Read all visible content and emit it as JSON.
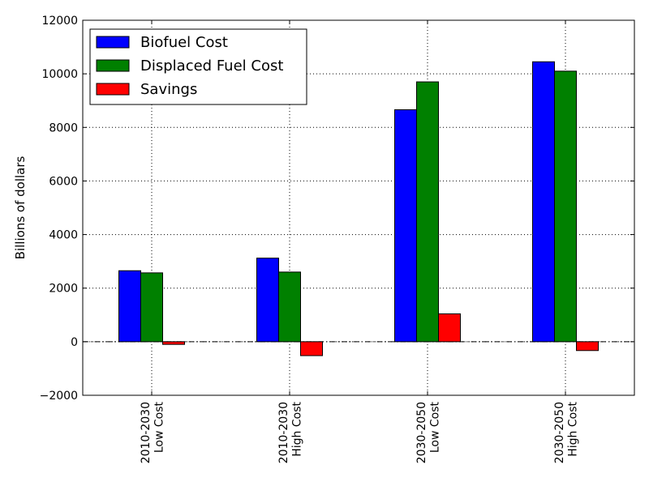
{
  "chart_data": {
    "type": "bar",
    "title": "",
    "xlabel": "",
    "ylabel": "Billions of dollars",
    "categories": [
      [
        "2010-2030",
        "Low Cost"
      ],
      [
        "2010-2030",
        "High Cost"
      ],
      [
        "2030-2050",
        "Low Cost"
      ],
      [
        "2030-2050",
        "High Cost"
      ]
    ],
    "series": [
      {
        "name": "Biofuel Cost",
        "color": "#0000ff",
        "values": [
          2650,
          3120,
          8660,
          10450
        ]
      },
      {
        "name": "Displaced Fuel Cost",
        "color": "#008000",
        "values": [
          2570,
          2600,
          9700,
          10100
        ]
      },
      {
        "name": "Savings",
        "color": "#ff0000",
        "values": [
          -100,
          -520,
          1040,
          -330
        ]
      }
    ],
    "ylim": [
      -2000,
      12000
    ],
    "yticks": [
      "−2000",
      "0",
      "2000",
      "4000",
      "6000",
      "8000",
      "10000",
      "12000"
    ],
    "ytick_values": [
      -2000,
      0,
      2000,
      4000,
      6000,
      8000,
      10000,
      12000
    ],
    "grid": true,
    "zero_line": true,
    "legend_position": "upper-left"
  }
}
